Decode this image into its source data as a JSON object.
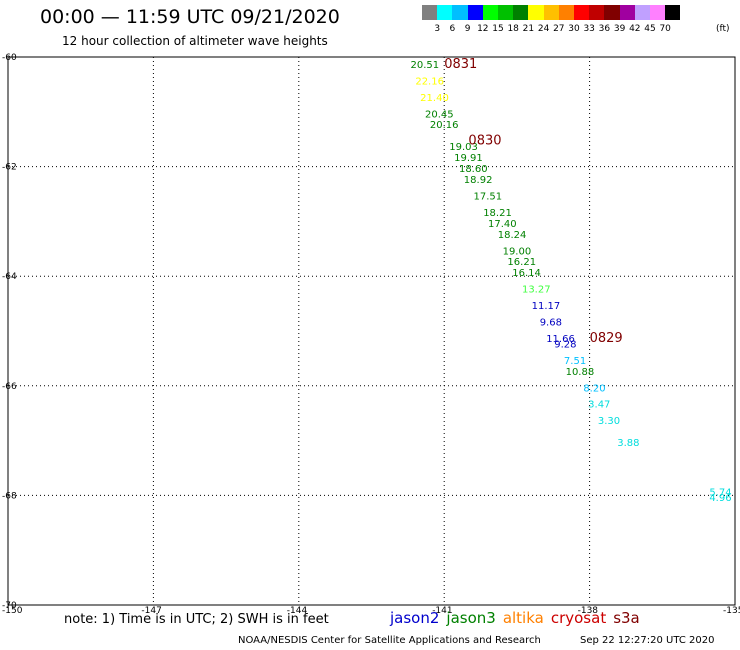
{
  "header": {
    "title": "00:00 — 11:59 UTC 09/21/2020",
    "subtitle": "12 hour collection of altimeter wave heights"
  },
  "colorbar": {
    "labels": [
      "3",
      "6",
      "9",
      "12",
      "15",
      "18",
      "21",
      "24",
      "27",
      "30",
      "33",
      "36",
      "39",
      "42",
      "45",
      "70"
    ],
    "unit": "(ft)",
    "colors": [
      "#808080",
      "#00ffff",
      "#00bfff",
      "#0000ff",
      "#00ff00",
      "#00c000",
      "#008000",
      "#ffff00",
      "#ffc000",
      "#ff8000",
      "#ff0000",
      "#c00000",
      "#800000",
      "#a000a0",
      "#c0a0ff",
      "#ff80ff",
      "#000000"
    ]
  },
  "note": "note: 1) Time is in UTC; 2) SWH is in feet",
  "legend": [
    {
      "name": "jason2",
      "color": "#0000cc"
    },
    {
      "name": "jason3",
      "color": "#008000"
    },
    {
      "name": "altika",
      "color": "#ff8000"
    },
    {
      "name": "cryosat",
      "color": "#cc0000"
    },
    {
      "name": "s3a",
      "color": "#800000"
    }
  ],
  "footer": {
    "left": "NOAA/NESDIS Center for Satellite Applications and Research",
    "right": "Sep 22 12:27:20 UTC 2020"
  },
  "chart_data": {
    "type": "scatter",
    "title": "00:00 — 11:59 UTC 09/21/2020",
    "xlim": [
      -150,
      -135
    ],
    "ylim": [
      -70,
      -60
    ],
    "x_ticks": [
      "-150",
      "-147",
      "-144",
      "-141",
      "-138",
      "-135"
    ],
    "y_ticks": [
      "-60",
      "-62",
      "-64",
      "-66",
      "-68",
      "-70"
    ],
    "grid": true,
    "series": [
      {
        "name": "s3a",
        "points": [
          {
            "lon": -141.4,
            "lat": -60.2,
            "label": "20.51",
            "color": "#008000"
          },
          {
            "lon": -141.3,
            "lat": -60.5,
            "label": "22.16",
            "color": "#ffff00"
          },
          {
            "lon": -141.2,
            "lat": -60.8,
            "label": "21.40",
            "color": "#ffff00"
          },
          {
            "lon": -141.1,
            "lat": -61.1,
            "label": "20.45",
            "color": "#008000"
          },
          {
            "lon": -141.0,
            "lat": -61.3,
            "label": "20.16",
            "color": "#008000"
          },
          {
            "lon": -140.6,
            "lat": -61.7,
            "label": "19.03",
            "color": "#008000"
          },
          {
            "lon": -140.5,
            "lat": -61.9,
            "label": "19.91",
            "color": "#008000"
          },
          {
            "lon": -140.4,
            "lat": -62.1,
            "label": "18.60",
            "color": "#008000"
          },
          {
            "lon": -140.3,
            "lat": -62.3,
            "label": "18.92",
            "color": "#008000"
          },
          {
            "lon": -140.1,
            "lat": -62.6,
            "label": "17.51",
            "color": "#008000"
          },
          {
            "lon": -139.9,
            "lat": -62.9,
            "label": "18.21",
            "color": "#008000"
          },
          {
            "lon": -139.8,
            "lat": -63.1,
            "label": "17.40",
            "color": "#008000"
          },
          {
            "lon": -139.6,
            "lat": -63.3,
            "label": "18.24",
            "color": "#008000"
          },
          {
            "lon": -139.5,
            "lat": -63.6,
            "label": "19.00",
            "color": "#008000"
          },
          {
            "lon": -139.4,
            "lat": -63.8,
            "label": "16.21",
            "color": "#008000"
          },
          {
            "lon": -139.3,
            "lat": -64.0,
            "label": "16.14",
            "color": "#008000"
          },
          {
            "lon": -139.1,
            "lat": -64.3,
            "label": "13.27",
            "color": "#40ff40"
          },
          {
            "lon": -138.9,
            "lat": -64.6,
            "label": "11.17",
            "color": "#0000c0"
          },
          {
            "lon": -138.8,
            "lat": -64.9,
            "label": "9.68",
            "color": "#0000c0"
          },
          {
            "lon": -138.6,
            "lat": -65.2,
            "label": "11.66",
            "color": "#0000c0"
          },
          {
            "lon": -138.5,
            "lat": -65.3,
            "label": "9.28",
            "color": "#0000c0"
          },
          {
            "lon": -138.3,
            "lat": -65.6,
            "label": "7.51",
            "color": "#00c0ff"
          },
          {
            "lon": -138.2,
            "lat": -65.8,
            "label": "10.88",
            "color": "#008000"
          },
          {
            "lon": -137.9,
            "lat": -66.1,
            "label": "8.20",
            "color": "#00c0ff"
          },
          {
            "lon": -137.8,
            "lat": -66.4,
            "label": "3.47",
            "color": "#00dddd"
          },
          {
            "lon": -137.6,
            "lat": -66.7,
            "label": "3.30",
            "color": "#00dddd"
          },
          {
            "lon": -137.2,
            "lat": -67.1,
            "label": "3.88",
            "color": "#00dddd"
          },
          {
            "lon": -135.3,
            "lat": -68.0,
            "label": "5.74",
            "color": "#00dddd"
          },
          {
            "lon": -135.3,
            "lat": -68.1,
            "label": "4.96",
            "color": "#00dddd"
          }
        ]
      }
    ],
    "annotations": [
      {
        "text": "0831",
        "lon": -141.0,
        "lat": -60.2
      },
      {
        "text": "0830",
        "lon": -140.5,
        "lat": -61.6
      },
      {
        "text": "0829",
        "lon": -138.0,
        "lat": -65.2
      }
    ]
  }
}
